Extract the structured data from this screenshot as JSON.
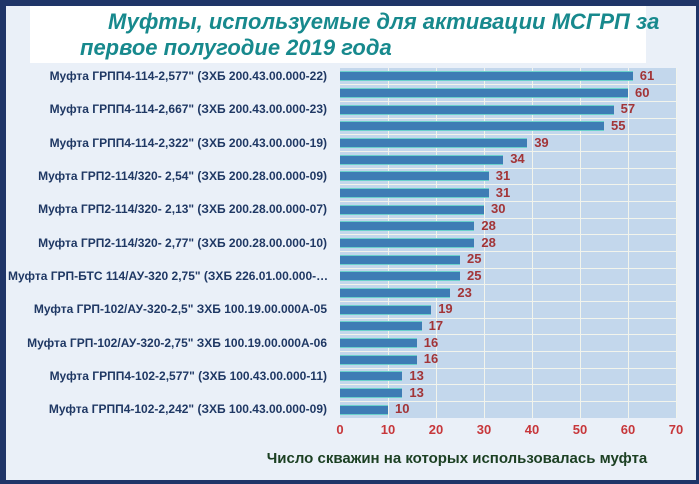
{
  "title": {
    "line1": "Муфты, используемые для активации МСГРП за",
    "line2": "первое полугодие 2019 года"
  },
  "chart_data": {
    "type": "bar",
    "orientation": "horizontal",
    "title": "Муфты, используемые для активации МСГРП за первое полугодие 2019 года",
    "xlabel": "Число скважин на которых использовалась муфта",
    "ylabel": "",
    "xlim": [
      0,
      70
    ],
    "xticks": [
      0,
      10,
      20,
      30,
      40,
      50,
      60,
      70
    ],
    "grid": true,
    "value_labels": true,
    "legend": "none",
    "category_label_interval": "every 2nd bar labeled",
    "bars": [
      {
        "label": "Муфта ГРПП4-114-2,577\" (ЗХБ 200.43.00.000-22)",
        "value": 61
      },
      {
        "label": "",
        "value": 60
      },
      {
        "label": "Муфта ГРПП4-114-2,667\" (ЗХБ 200.43.00.000-23)",
        "value": 57
      },
      {
        "label": "",
        "value": 55
      },
      {
        "label": "Муфта ГРПП4-114-2,322\" (ЗХБ 200.43.00.000-19)",
        "value": 39
      },
      {
        "label": "",
        "value": 34
      },
      {
        "label": "Муфта ГРП2-114/320- 2,54\" (ЗХБ 200.28.00.000-09)",
        "value": 31
      },
      {
        "label": "",
        "value": 31
      },
      {
        "label": "Муфта ГРП2-114/320- 2,13\" (ЗХБ 200.28.00.000-07)",
        "value": 30
      },
      {
        "label": "",
        "value": 28
      },
      {
        "label": "Муфта ГРП2-114/320- 2,77\"  (ЗХБ 200.28.00.000-10)",
        "value": 28
      },
      {
        "label": "",
        "value": 25
      },
      {
        "label": "Муфта ГРП-БТС 114/АУ-320 2,75\" (ЗХБ 226.01.00.000-…",
        "value": 25
      },
      {
        "label": "",
        "value": 23
      },
      {
        "label": "Муфта ГРП-102/АУ-320-2,5\"   ЗХБ 100.19.00.000А-05",
        "value": 19
      },
      {
        "label": "",
        "value": 17
      },
      {
        "label": "Муфта ГРП-102/АУ-320-2,75\"  ЗХБ 100.19.00.000А-06",
        "value": 16
      },
      {
        "label": "",
        "value": 16
      },
      {
        "label": "Муфта ГРПП4-102-2,577\" (ЗХБ 100.43.00.000-11)",
        "value": 13
      },
      {
        "label": "",
        "value": 13
      },
      {
        "label": "Муфта ГРПП4-102-2,242\" (ЗХБ 100.43.00.000-09)",
        "value": 10
      }
    ],
    "colors": {
      "frame": "#1F3568",
      "chart_bg": "#EAF0F8",
      "title": "#17898D",
      "plot_bg": "#C3D7EC",
      "gridline": "#F2F4EC",
      "bar_fill": "#3E7CB5",
      "bar_border": "#6BD1CB",
      "value_label": "#A23437",
      "tick_label": "#C7373B",
      "category_label": "#1F3864",
      "xlabel": "#1C4023"
    }
  }
}
